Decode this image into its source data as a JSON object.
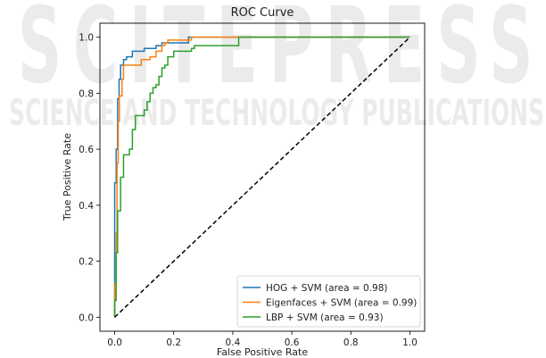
{
  "watermark": {
    "top_text": "SCITEPRESS",
    "bottom_text": "SCIENCE AND TECHNOLOGY PUBLICATIONS"
  },
  "chart_data": {
    "type": "line",
    "title": "ROC Curve",
    "xlabel": "False Positive Rate",
    "ylabel": "True Positive Rate",
    "xlim": [
      -0.05,
      1.05
    ],
    "ylim": [
      -0.05,
      1.05
    ],
    "xticks": [
      "0.0",
      "0.2",
      "0.4",
      "0.6",
      "0.8",
      "1.0"
    ],
    "yticks": [
      "0.0",
      "0.2",
      "0.4",
      "0.6",
      "0.8",
      "1.0"
    ],
    "grid": false,
    "legend_position": "lower-right",
    "series": [
      {
        "name": "HOG + SVM (area = 0.98)",
        "color": "#1f77b4",
        "style": "step",
        "points": [
          [
            0,
            0
          ],
          [
            0,
            0.48
          ],
          [
            0.005,
            0.6
          ],
          [
            0.01,
            0.78
          ],
          [
            0.015,
            0.85
          ],
          [
            0.02,
            0.9
          ],
          [
            0.03,
            0.92
          ],
          [
            0.04,
            0.93
          ],
          [
            0.06,
            0.95
          ],
          [
            0.1,
            0.96
          ],
          [
            0.14,
            0.97
          ],
          [
            0.16,
            0.98
          ],
          [
            0.25,
            0.99
          ],
          [
            0.25,
            1.0
          ],
          [
            1.0,
            1.0
          ]
        ]
      },
      {
        "name": "Eigenfaces + SVM (area = 0.99)",
        "color": "#ff7f0e",
        "style": "step",
        "points": [
          [
            0,
            0
          ],
          [
            0,
            0.12
          ],
          [
            0.005,
            0.3
          ],
          [
            0.008,
            0.55
          ],
          [
            0.012,
            0.7
          ],
          [
            0.016,
            0.79
          ],
          [
            0.025,
            0.85
          ],
          [
            0.03,
            0.9
          ],
          [
            0.08,
            0.9
          ],
          [
            0.09,
            0.92
          ],
          [
            0.12,
            0.93
          ],
          [
            0.14,
            0.95
          ],
          [
            0.16,
            0.97
          ],
          [
            0.17,
            0.98
          ],
          [
            0.18,
            0.99
          ],
          [
            0.26,
            1.0
          ],
          [
            1.0,
            1.0
          ]
        ]
      },
      {
        "name": "LBP + SVM (area = 0.93)",
        "color": "#2ca02c",
        "style": "step",
        "points": [
          [
            0,
            0
          ],
          [
            0,
            0.06
          ],
          [
            0.005,
            0.23
          ],
          [
            0.01,
            0.38
          ],
          [
            0.02,
            0.5
          ],
          [
            0.03,
            0.58
          ],
          [
            0.05,
            0.6
          ],
          [
            0.06,
            0.67
          ],
          [
            0.07,
            0.72
          ],
          [
            0.1,
            0.72
          ],
          [
            0.1,
            0.74
          ],
          [
            0.11,
            0.77
          ],
          [
            0.12,
            0.8
          ],
          [
            0.13,
            0.82
          ],
          [
            0.14,
            0.83
          ],
          [
            0.15,
            0.86
          ],
          [
            0.16,
            0.89
          ],
          [
            0.17,
            0.9
          ],
          [
            0.18,
            0.93
          ],
          [
            0.2,
            0.95
          ],
          [
            0.26,
            0.96
          ],
          [
            0.27,
            0.97
          ],
          [
            0.42,
            0.99
          ],
          [
            0.42,
            1.0
          ],
          [
            1.0,
            1.0
          ]
        ]
      },
      {
        "name": "",
        "color": "#000000",
        "style": "dashed",
        "points": [
          [
            0,
            0
          ],
          [
            1,
            1
          ]
        ]
      }
    ]
  }
}
